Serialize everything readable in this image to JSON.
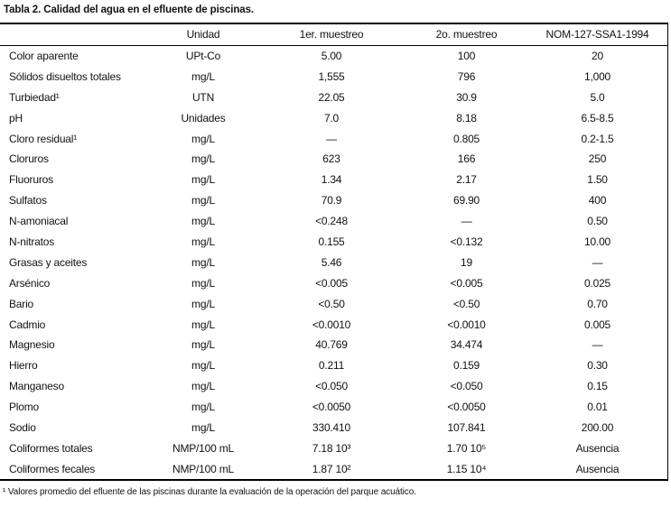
{
  "title": "Tabla 2. Calidad del agua en el efluente de piscinas.",
  "table": {
    "headers": [
      "",
      "Unidad",
      "1er. muestreo",
      "2o. muestreo",
      "NOM-127-SSA1-1994"
    ],
    "rows": [
      [
        "Color aparente",
        "UPt-Co",
        "5.00",
        "100",
        "20"
      ],
      [
        "Sólidos disueltos totales",
        "mg/L",
        "1,555",
        "796",
        "1,000"
      ],
      [
        "Turbiedad¹",
        "UTN",
        "22.05",
        "30.9",
        "5.0"
      ],
      [
        "pH",
        "Unidades",
        "7.0",
        "8.18",
        "6.5-8.5"
      ],
      [
        "Cloro residual¹",
        "mg/L",
        "—",
        "0.805",
        "0.2-1.5"
      ],
      [
        "Cloruros",
        "mg/L",
        "623",
        "166",
        "250"
      ],
      [
        "Fluoruros",
        "mg/L",
        "1.34",
        "2.17",
        "1.50"
      ],
      [
        "Sulfatos",
        "mg/L",
        "70.9",
        "69.90",
        "400"
      ],
      [
        "N-amoniacal",
        "mg/L",
        "<0.248",
        "—",
        "0.50"
      ],
      [
        "N-nitratos",
        "mg/L",
        "0.155",
        "<0.132",
        "10.00"
      ],
      [
        "Grasas y aceites",
        "mg/L",
        "5.46",
        "19",
        "—"
      ],
      [
        "Arsénico",
        "mg/L",
        "<0.005",
        "<0.005",
        "0.025"
      ],
      [
        "Bario",
        "mg/L",
        "<0.50",
        "<0.50",
        "0.70"
      ],
      [
        "Cadmio",
        "mg/L",
        "<0.0010",
        "<0.0010",
        "0.005"
      ],
      [
        "Magnesio",
        "mg/L",
        "40.769",
        "34.474",
        "—"
      ],
      [
        "Hierro",
        "mg/L",
        "0.211",
        "0.159",
        "0.30"
      ],
      [
        "Manganeso",
        "mg/L",
        "<0.050",
        "<0.050",
        "0.15"
      ],
      [
        "Plomo",
        "mg/L",
        "<0.0050",
        "<0.0050",
        "0.01"
      ],
      [
        "Sodio",
        "mg/L",
        "330.410",
        "107.841",
        "200.00"
      ],
      [
        "Coliformes totales",
        "NMP/100 mL",
        "7.18 10³",
        "1.70 10⁵",
        "Ausencia"
      ],
      [
        "Coliformes fecales",
        "NMP/100 mL",
        "1.87 10²",
        "1.15 10⁴",
        "Ausencia"
      ]
    ]
  },
  "footnote": "¹ Valores promedio del efluente de las piscinas durante la evaluación de la operación del parque acuático.",
  "colors": {
    "text": "#121212",
    "rule": "#000000",
    "background": "#ffffff"
  }
}
